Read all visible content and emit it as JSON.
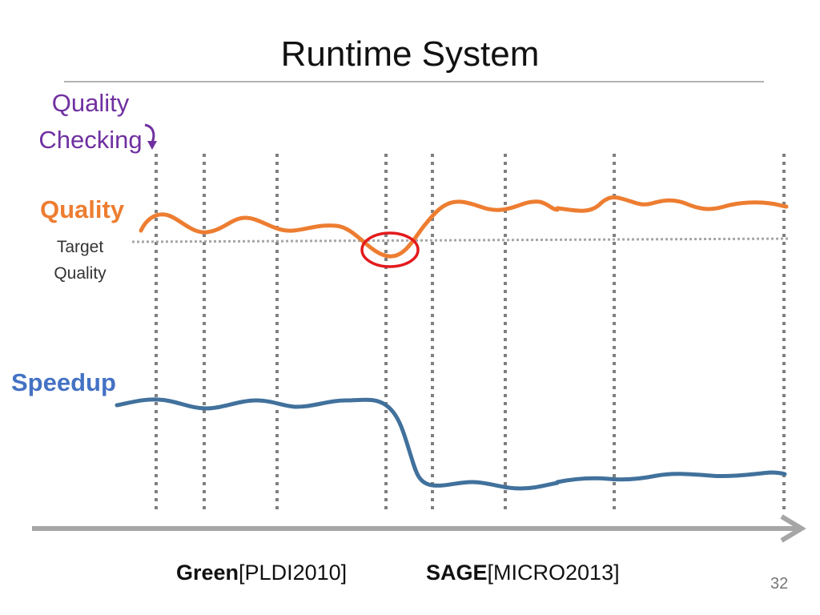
{
  "slide": {
    "title": "Runtime System",
    "page_number": "32"
  },
  "labels": {
    "quality_checking_line1": "Quality",
    "quality_checking_line2": "Checking",
    "quality": "Quality",
    "target_line1": "Target",
    "target_line2": "Quality",
    "speedup": "Speedup"
  },
  "citations": {
    "green_name": "Green",
    "green_ref": "[PLDI2010]",
    "sage_name": "SAGE",
    "sage_ref": "[MICRO2013]"
  },
  "colors": {
    "quality_line": "#ed7d31",
    "speedup_line": "#41719c",
    "target_line": "#a6a6a6",
    "checkpoint_line": "#7f7f7f",
    "time_axis": "#a6a6a6",
    "violation_marker": "#e31a1c",
    "quality_checking_text": "#7030a0"
  },
  "icons": {
    "checking_arrow": "curved-down-arrow-icon",
    "violation_marker": "ellipse-highlight"
  }
}
